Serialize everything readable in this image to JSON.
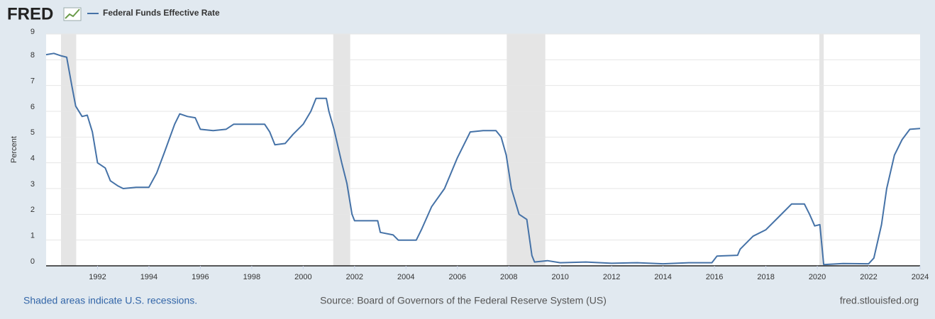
{
  "logo": "FRED",
  "chart_data": {
    "type": "line",
    "series": [
      {
        "name": "Federal Funds Effective Rate",
        "color": "#4572a7",
        "x": [
          1990.0,
          1990.3,
          1990.6,
          1990.8,
          1991.0,
          1991.15,
          1991.4,
          1991.6,
          1991.8,
          1992.0,
          1992.3,
          1992.5,
          1992.8,
          1993.0,
          1993.5,
          1994.0,
          1994.3,
          1994.6,
          1995.0,
          1995.2,
          1995.5,
          1995.8,
          1996.0,
          1996.5,
          1997.0,
          1997.3,
          1998.0,
          1998.5,
          1998.7,
          1998.9,
          1999.3,
          1999.6,
          2000.0,
          2000.3,
          2000.5,
          2000.9,
          2001.0,
          2001.2,
          2001.5,
          2001.7,
          2001.9,
          2002.0,
          2002.5,
          2002.9,
          2003.0,
          2003.5,
          2003.7,
          2004.0,
          2004.4,
          2004.6,
          2005.0,
          2005.5,
          2006.0,
          2006.5,
          2007.0,
          2007.5,
          2007.7,
          2007.9,
          2008.1,
          2008.4,
          2008.7,
          2008.9,
          2009.0,
          2009.5,
          2010.0,
          2011.0,
          2012.0,
          2013.0,
          2014.0,
          2015.0,
          2015.9,
          2016.1,
          2016.9,
          2017.0,
          2017.5,
          2018.0,
          2018.5,
          2019.0,
          2019.5,
          2019.7,
          2019.9,
          2020.1,
          2020.25,
          2021.0,
          2022.0,
          2022.2,
          2022.5,
          2022.7,
          2023.0,
          2023.3,
          2023.6,
          2024.0
        ],
        "values": [
          8.2,
          8.25,
          8.15,
          8.1,
          7.0,
          6.2,
          5.8,
          5.85,
          5.2,
          4.0,
          3.8,
          3.3,
          3.1,
          3.0,
          3.05,
          3.05,
          3.6,
          4.4,
          5.5,
          5.9,
          5.8,
          5.75,
          5.3,
          5.25,
          5.3,
          5.5,
          5.5,
          5.5,
          5.2,
          4.7,
          4.75,
          5.1,
          5.5,
          6.0,
          6.5,
          6.5,
          6.0,
          5.3,
          4.0,
          3.2,
          2.0,
          1.75,
          1.75,
          1.75,
          1.3,
          1.2,
          1.0,
          1.0,
          1.0,
          1.4,
          2.3,
          3.0,
          4.2,
          5.2,
          5.25,
          5.25,
          5.0,
          4.3,
          3.0,
          2.0,
          1.8,
          0.4,
          0.15,
          0.2,
          0.12,
          0.15,
          0.1,
          0.12,
          0.08,
          0.12,
          0.12,
          0.38,
          0.41,
          0.65,
          1.15,
          1.4,
          1.9,
          2.4,
          2.4,
          2.0,
          1.55,
          1.6,
          0.05,
          0.09,
          0.08,
          0.3,
          1.6,
          3.0,
          4.3,
          4.9,
          5.3,
          5.33
        ]
      }
    ],
    "recessions": [
      [
        1990.58,
        1991.17
      ],
      [
        2001.17,
        2001.83
      ],
      [
        2007.92,
        2009.42
      ],
      [
        2020.08,
        2020.25
      ]
    ],
    "ylabel": "Percent",
    "xlim": [
      1990,
      2024
    ],
    "xticks": [
      1992,
      1994,
      1996,
      1998,
      2000,
      2002,
      2004,
      2006,
      2008,
      2010,
      2012,
      2014,
      2016,
      2018,
      2020,
      2022,
      2024
    ],
    "ylim": [
      0,
      9
    ],
    "yticks": [
      0,
      1,
      2,
      3,
      4,
      5,
      6,
      7,
      8,
      9
    ],
    "grid": true
  },
  "footer": {
    "note": "Shaded areas indicate U.S. recessions.",
    "source": "Source: Board of Governors of the Federal Reserve System (US)",
    "site": "fred.stlouisfed.org"
  }
}
